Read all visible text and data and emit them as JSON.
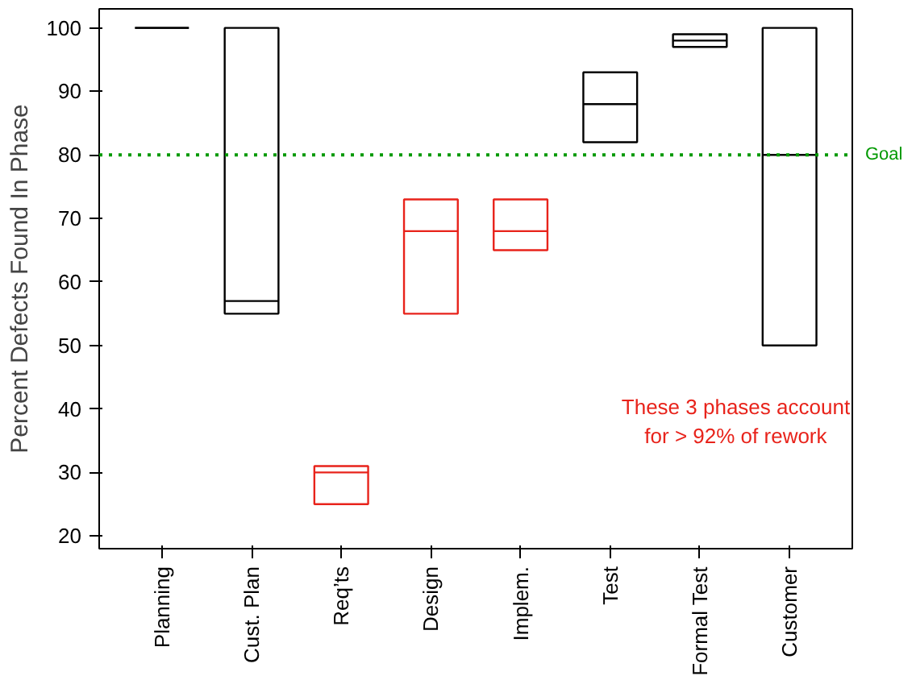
{
  "chart_data": {
    "type": "box",
    "ylabel": "Percent Defects Found In Phase",
    "categories": [
      "Planning",
      "Cust. Plan",
      "Req’ts",
      "Design",
      "Implem.",
      "Test",
      "Formal Test",
      "Customer"
    ],
    "boxes": [
      {
        "low": 100,
        "q1": 100,
        "median": 100,
        "q3": 100,
        "high": 100
      },
      {
        "low": 55,
        "q1": 55,
        "median": 57,
        "q3": 100,
        "high": 100
      },
      {
        "low": 25,
        "q1": 25,
        "median": 30,
        "q3": 31,
        "high": 31
      },
      {
        "low": 55,
        "q1": 55,
        "median": 68,
        "q3": 73,
        "high": 73
      },
      {
        "low": 65,
        "q1": 65,
        "median": 68,
        "q3": 73,
        "high": 73
      },
      {
        "low": 82,
        "q1": 82,
        "median": 88,
        "q3": 93,
        "high": 93
      },
      {
        "low": 97,
        "q1": 97,
        "median": 98,
        "q3": 99,
        "high": 99
      },
      {
        "low": 50,
        "q1": 50,
        "median": 80,
        "q3": 100,
        "high": 100
      }
    ],
    "colors": [
      "#000000",
      "#000000",
      "#e8231b",
      "#e8231b",
      "#e8231b",
      "#000000",
      "#000000",
      "#000000"
    ],
    "ylim": [
      18,
      103
    ],
    "yticks": [
      20,
      30,
      40,
      50,
      60,
      70,
      80,
      90,
      100
    ],
    "grid": false,
    "ref_lines": [
      {
        "axis": "y",
        "value": 80,
        "label": "Goal",
        "color": "#009900",
        "line_style": "dotted"
      }
    ],
    "annotations": [
      "These 3 phases account\nfor > 92% of rework"
    ]
  }
}
